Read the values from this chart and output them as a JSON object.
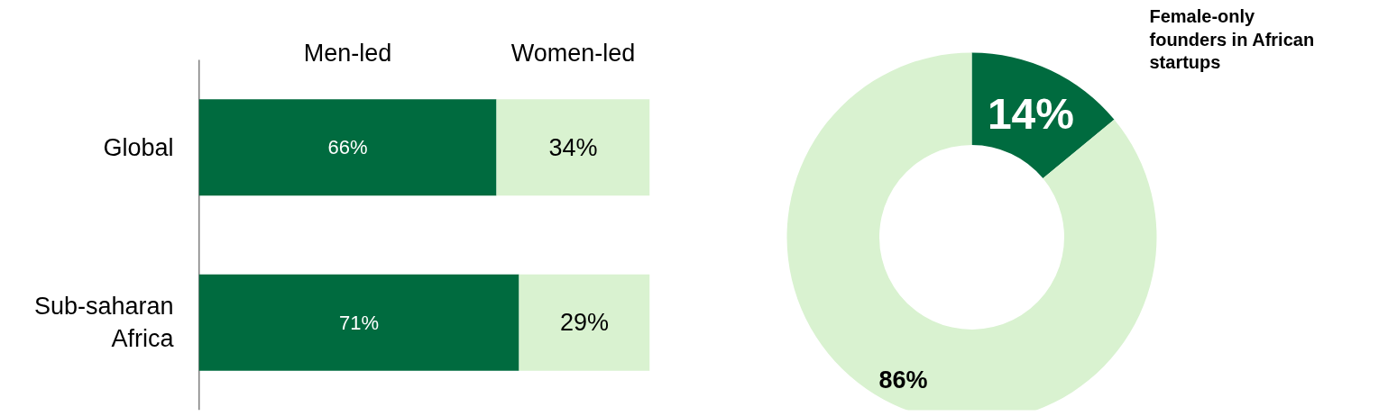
{
  "chart_data": [
    {
      "type": "bar",
      "orientation": "horizontal",
      "stacked": true,
      "categories": [
        "Global",
        "Sub-saharan Africa"
      ],
      "series": [
        {
          "name": "Men-led",
          "color": "#006b3f",
          "values": [
            66,
            71
          ],
          "value_labels": [
            "66%",
            "71%"
          ]
        },
        {
          "name": "Women-led",
          "color": "#d9f2d0",
          "values": [
            34,
            29
          ],
          "value_labels": [
            "34%",
            "29%"
          ]
        }
      ],
      "tick_labels": "y"
    },
    {
      "type": "donut",
      "title": "Female-only founders in African startups",
      "categories": [
        null,
        null
      ],
      "values": [
        14,
        86
      ],
      "value_labels": [
        "14%",
        "86%"
      ],
      "colors": [
        "#006b3f",
        "#d9f2d0"
      ]
    }
  ]
}
